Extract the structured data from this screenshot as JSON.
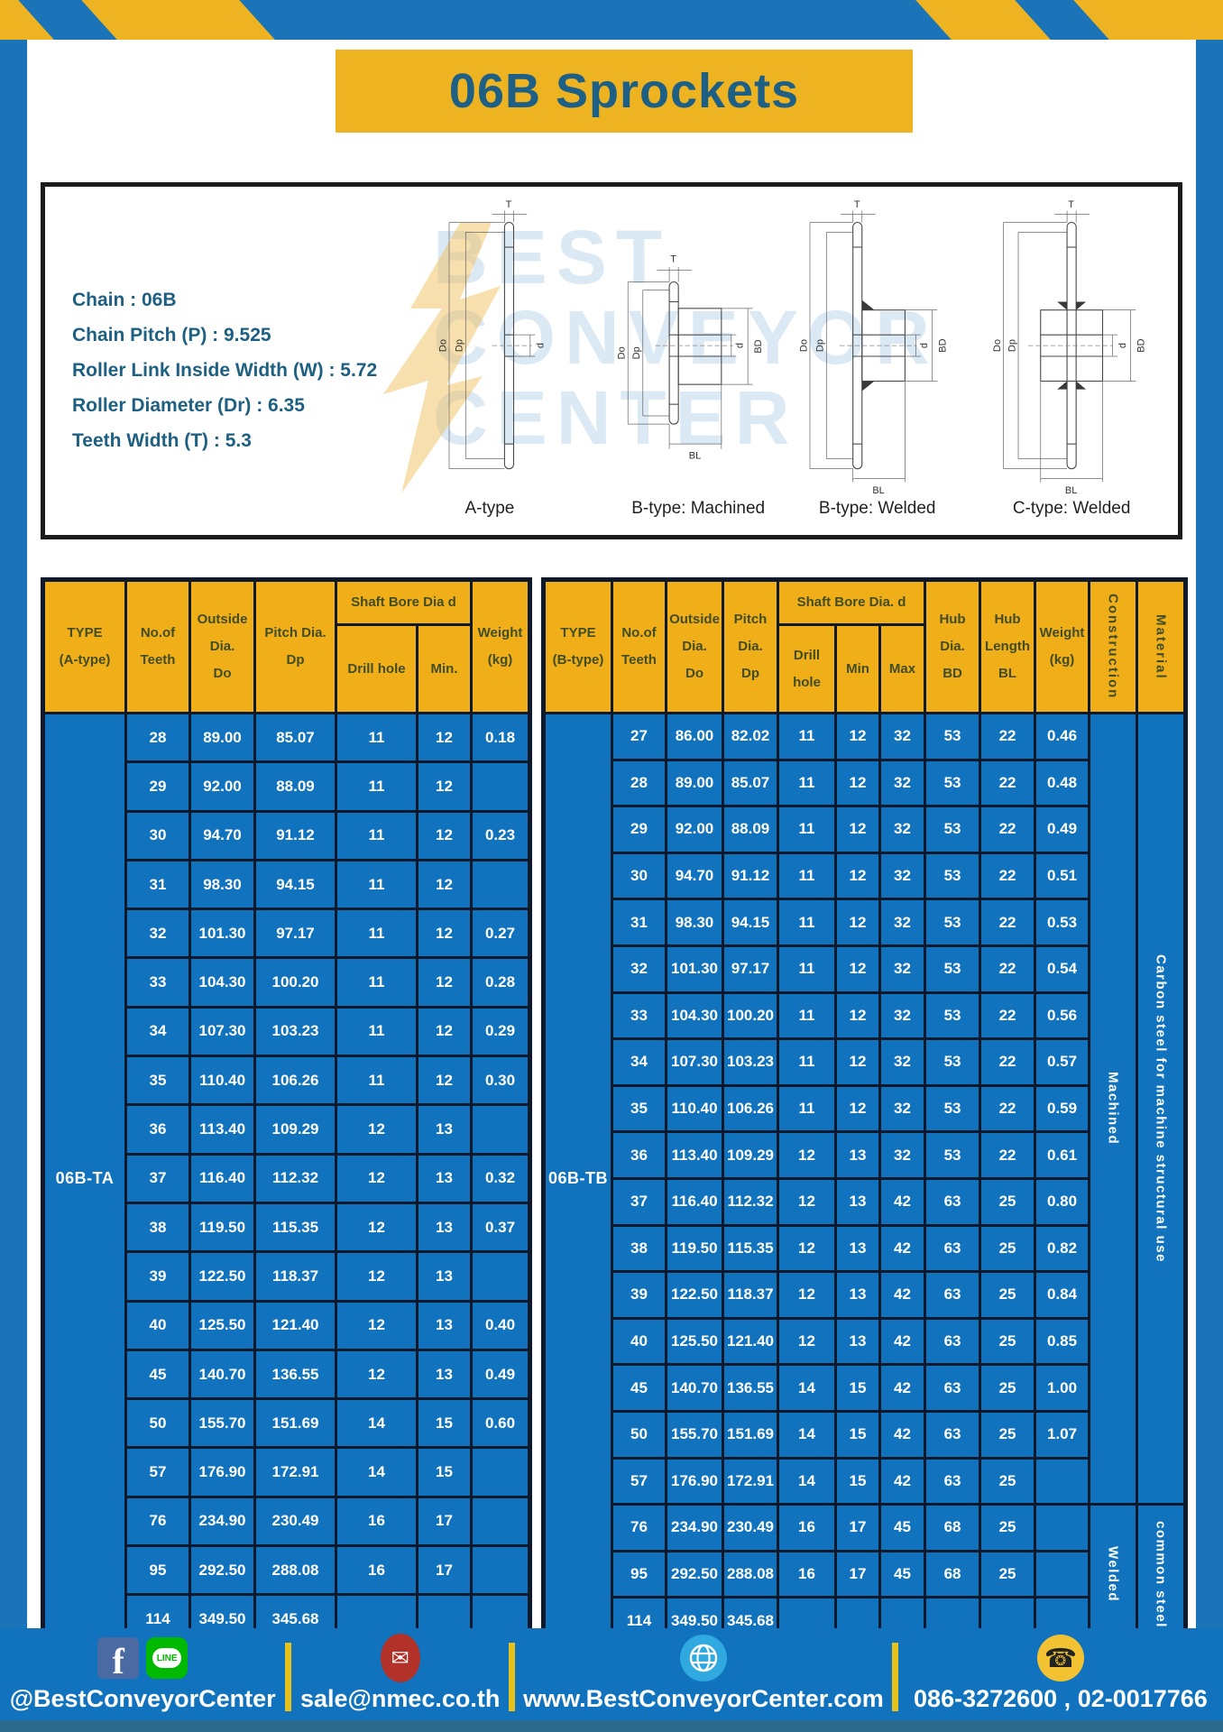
{
  "page": {
    "title": "06B Sprockets"
  },
  "specs": {
    "lines": [
      "Chain : 06B",
      "Chain Pitch (P) : 9.525",
      "Roller Link Inside Width (W) : 5.72",
      "Roller Diameter (Dr) : 6.35",
      "Teeth Width (T) : 5.3"
    ]
  },
  "diagrams": {
    "watermark": [
      "BEST",
      "CONVEYOR",
      "CENTER"
    ],
    "dims": {
      "T": "T",
      "Do": "Do",
      "Dp": "Dp",
      "d": "d",
      "BD": "BD",
      "BL": "BL"
    },
    "labels": [
      "A-type",
      "B-type: Machined",
      "B-type: Welded",
      "C-type: Welded"
    ]
  },
  "table_a": {
    "header": {
      "type": "TYPE\n(A-type)",
      "teeth": "No.of\nTeeth",
      "outside": "Outside\nDia.\nDo",
      "pitch": "Pitch Dia.\nDp",
      "shaft": "Shaft Bore Dia d",
      "drill": "Drill hole",
      "min": "Min.",
      "weight": "Weight\n(kg)"
    },
    "type_value": "06B-TA",
    "rows": [
      [
        "28",
        "89.00",
        "85.07",
        "11",
        "12",
        "0.18"
      ],
      [
        "29",
        "92.00",
        "88.09",
        "11",
        "12",
        ""
      ],
      [
        "30",
        "94.70",
        "91.12",
        "11",
        "12",
        "0.23"
      ],
      [
        "31",
        "98.30",
        "94.15",
        "11",
        "12",
        ""
      ],
      [
        "32",
        "101.30",
        "97.17",
        "11",
        "12",
        "0.27"
      ],
      [
        "33",
        "104.30",
        "100.20",
        "11",
        "12",
        "0.28"
      ],
      [
        "34",
        "107.30",
        "103.23",
        "11",
        "12",
        "0.29"
      ],
      [
        "35",
        "110.40",
        "106.26",
        "11",
        "12",
        "0.30"
      ],
      [
        "36",
        "113.40",
        "109.29",
        "12",
        "13",
        ""
      ],
      [
        "37",
        "116.40",
        "112.32",
        "12",
        "13",
        "0.32"
      ],
      [
        "38",
        "119.50",
        "115.35",
        "12",
        "13",
        "0.37"
      ],
      [
        "39",
        "122.50",
        "118.37",
        "12",
        "13",
        ""
      ],
      [
        "40",
        "125.50",
        "121.40",
        "12",
        "13",
        "0.40"
      ],
      [
        "45",
        "140.70",
        "136.55",
        "12",
        "13",
        "0.49"
      ],
      [
        "50",
        "155.70",
        "151.69",
        "14",
        "15",
        "0.60"
      ],
      [
        "57",
        "176.90",
        "172.91",
        "14",
        "15",
        ""
      ],
      [
        "76",
        "234.90",
        "230.49",
        "16",
        "17",
        ""
      ],
      [
        "95",
        "292.50",
        "288.08",
        "16",
        "17",
        ""
      ],
      [
        "114",
        "349.50",
        "345.68",
        "",
        "",
        ""
      ]
    ]
  },
  "table_b": {
    "header": {
      "type": "TYPE\n(B-type)",
      "teeth": "No.of\nTeeth",
      "outside": "Outside\nDia.\nDo",
      "pitch": "Pitch\nDia.\nDp",
      "shaft": "Shaft Bore Dia. d",
      "drill": "Drill hole",
      "min": "Min",
      "max": "Max",
      "hub_dia": "Hub\nDia.\nBD",
      "hub_len": "Hub\nLength\nBL",
      "weight": "Weight\n(kg)",
      "construction": "Construction",
      "material": "Material"
    },
    "type_value": "06B-TB",
    "rows": [
      [
        "27",
        "86.00",
        "82.02",
        "11",
        "12",
        "32",
        "53",
        "22",
        "0.46"
      ],
      [
        "28",
        "89.00",
        "85.07",
        "11",
        "12",
        "32",
        "53",
        "22",
        "0.48"
      ],
      [
        "29",
        "92.00",
        "88.09",
        "11",
        "12",
        "32",
        "53",
        "22",
        "0.49"
      ],
      [
        "30",
        "94.70",
        "91.12",
        "11",
        "12",
        "32",
        "53",
        "22",
        "0.51"
      ],
      [
        "31",
        "98.30",
        "94.15",
        "11",
        "12",
        "32",
        "53",
        "22",
        "0.53"
      ],
      [
        "32",
        "101.30",
        "97.17",
        "11",
        "12",
        "32",
        "53",
        "22",
        "0.54"
      ],
      [
        "33",
        "104.30",
        "100.20",
        "11",
        "12",
        "32",
        "53",
        "22",
        "0.56"
      ],
      [
        "34",
        "107.30",
        "103.23",
        "11",
        "12",
        "32",
        "53",
        "22",
        "0.57"
      ],
      [
        "35",
        "110.40",
        "106.26",
        "11",
        "12",
        "32",
        "53",
        "22",
        "0.59"
      ],
      [
        "36",
        "113.40",
        "109.29",
        "12",
        "13",
        "32",
        "53",
        "22",
        "0.61"
      ],
      [
        "37",
        "116.40",
        "112.32",
        "12",
        "13",
        "42",
        "63",
        "25",
        "0.80"
      ],
      [
        "38",
        "119.50",
        "115.35",
        "12",
        "13",
        "42",
        "63",
        "25",
        "0.82"
      ],
      [
        "39",
        "122.50",
        "118.37",
        "12",
        "13",
        "42",
        "63",
        "25",
        "0.84"
      ],
      [
        "40",
        "125.50",
        "121.40",
        "12",
        "13",
        "42",
        "63",
        "25",
        "0.85"
      ],
      [
        "45",
        "140.70",
        "136.55",
        "14",
        "15",
        "42",
        "63",
        "25",
        "1.00"
      ],
      [
        "50",
        "155.70",
        "151.69",
        "14",
        "15",
        "42",
        "63",
        "25",
        "1.07"
      ],
      [
        "57",
        "176.90",
        "172.91",
        "14",
        "15",
        "42",
        "63",
        "25",
        ""
      ],
      [
        "76",
        "234.90",
        "230.49",
        "16",
        "17",
        "45",
        "68",
        "25",
        ""
      ],
      [
        "95",
        "292.50",
        "288.08",
        "16",
        "17",
        "45",
        "68",
        "25",
        ""
      ],
      [
        "114",
        "349.50",
        "345.68",
        "",
        "",
        "",
        "",
        "",
        ""
      ]
    ],
    "groups": [
      [
        {
          "label": "Machined",
          "rows": 17
        },
        {
          "label": "Welded",
          "rows": 3
        }
      ],
      [
        {
          "label": "Carbon steel for machine structural use",
          "rows": 17
        },
        {
          "label": "common steel",
          "rows": 3
        }
      ]
    ]
  },
  "footer": {
    "social_handle": "@BestConveyorCenter",
    "line_label": "LINE",
    "email": "sale@nmec.co.th",
    "website": "www.BestConveyorCenter.com",
    "phones": "086-3272600 , 02-0017766"
  },
  "colors": {
    "frame_blue": "#1b74b8",
    "accent_yellow": "#eeb321",
    "table_blue": "#1173bd",
    "header_yellow": "#f0ae18",
    "title_text": "#1d5f85",
    "table_border": "#0e1a2b"
  }
}
